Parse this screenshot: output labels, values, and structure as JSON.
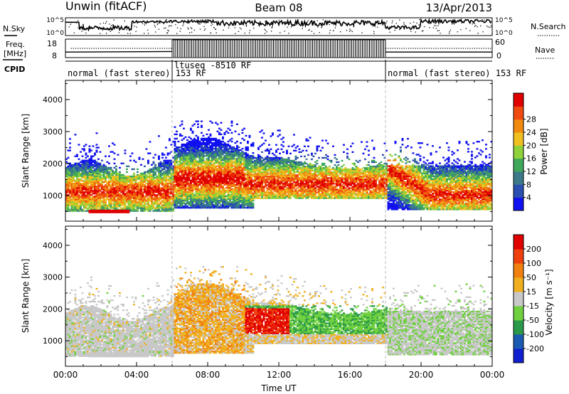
{
  "header": {
    "radar": "Unwin (fitACF)",
    "beam": "Beam 08",
    "date": "13/Apr/2013"
  },
  "panels": {
    "nsky": {
      "left_label": "N.Sky",
      "right_label": "N.Search",
      "left_ticks": [
        "10^5",
        "10^0"
      ],
      "right_ticks": [
        "10^5",
        "10^0"
      ]
    },
    "freq": {
      "left_label_1": "Freq.",
      "left_label_2": "[MHz]",
      "left_ticks": [
        "18",
        "8"
      ],
      "right_label": "Nave",
      "right_ticks": [
        "60",
        "0"
      ]
    },
    "cpid": {
      "label": "CPID",
      "segments": [
        {
          "text": "normal (fast stereo) 153 RF",
          "start_h": 0
        },
        {
          "text": "ltuseq -8510 RF",
          "start_h": 6
        },
        {
          "text": "normal (fast stereo) 153 RF",
          "start_h": 18
        }
      ]
    }
  },
  "chart_data": [
    {
      "type": "heatmap",
      "name": "power",
      "ylabel": "Slant Range [km]",
      "ylim": [
        200,
        4600
      ],
      "yticks": [
        "1000",
        "2000",
        "3000",
        "4000"
      ],
      "colorbar_label": "Power [dB]",
      "colorbar_ticks": [
        "4",
        "8",
        "12",
        "16",
        "20",
        "24",
        "28"
      ],
      "colors": [
        "#1010f0",
        "#2a4fb0",
        "#3c7a8a",
        "#3fa85a",
        "#8fd23a",
        "#f0c020",
        "#f08a10",
        "#f04a10",
        "#e00000"
      ]
    },
    {
      "type": "heatmap",
      "name": "velocity",
      "ylabel": "Slant Range [km]",
      "ylim": [
        200,
        4600
      ],
      "yticks": [
        "1000",
        "2000",
        "3000",
        "4000"
      ],
      "colorbar_label": "Velocity [m s⁻¹]",
      "colorbar_ticks": [
        "200",
        "100",
        "50",
        "15",
        "-15",
        "-50",
        "-100",
        "-200"
      ],
      "colors": [
        "#1020d0",
        "#1a5ab0",
        "#2a9a4a",
        "#70d040",
        "#c8c8c8",
        "#f0b020",
        "#f08010",
        "#f04010",
        "#e00000"
      ]
    }
  ],
  "x_axis": {
    "xlabel": "Time UT",
    "xlim": [
      0,
      24
    ],
    "tick_labels": [
      "00:00",
      "04:00",
      "08:00",
      "12:00",
      "16:00",
      "20:00",
      "00:00"
    ]
  }
}
